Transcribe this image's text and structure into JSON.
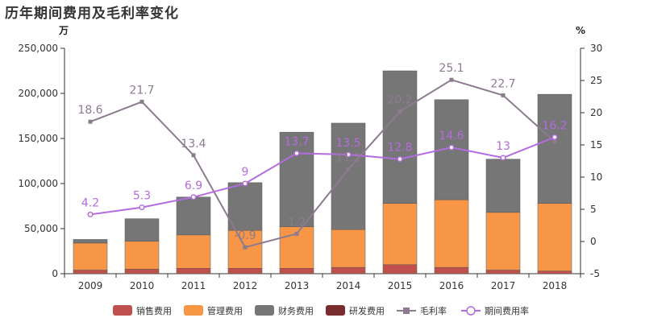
{
  "chart_data": {
    "type": "bar",
    "title": "历年期间费用及毛利率变化",
    "y_left_unit": "万",
    "y_right_unit": "%",
    "categories": [
      "2009",
      "2010",
      "2011",
      "2012",
      "2013",
      "2014",
      "2015",
      "2016",
      "2017",
      "2018"
    ],
    "y_left": {
      "min": 0,
      "max": 250000,
      "ticks": [
        "0",
        "50,000",
        "100,000",
        "150,000",
        "200,000",
        "250,000"
      ]
    },
    "y_right": {
      "min": -5,
      "max": 30,
      "ticks": [
        "-5",
        "0",
        "5",
        "10",
        "15",
        "20",
        "25",
        "30"
      ]
    },
    "grid": false,
    "legend_position": "bottom",
    "bar_series": [
      {
        "name": "销售费用",
        "color": "#c0504d",
        "values": [
          4000,
          5000,
          6000,
          6000,
          6000,
          7000,
          10000,
          7000,
          4000,
          3000
        ]
      },
      {
        "name": "管理费用",
        "color": "#f79646",
        "values": [
          30000,
          31000,
          37000,
          42000,
          46000,
          42000,
          68000,
          75000,
          64000,
          75000
        ]
      },
      {
        "name": "财务费用",
        "color": "#767676",
        "values": [
          4000,
          25000,
          42000,
          53000,
          105000,
          118000,
          147000,
          111000,
          59000,
          121000
        ]
      },
      {
        "name": "研发费用",
        "color": "#7b2c2c",
        "values": [
          0,
          0,
          0,
          0,
          0,
          0,
          0,
          0,
          0,
          0
        ]
      }
    ],
    "line_series": [
      {
        "name": "毛利率",
        "color": "#8c7b8f",
        "marker": "square",
        "values": [
          18.6,
          21.7,
          13.4,
          -0.9,
          1.2,
          11.2,
          20.2,
          25.1,
          22.7,
          15.5
        ],
        "labels": [
          "18.6",
          "21.7",
          "13.4",
          "-0.9",
          "1.2",
          "11.2",
          "20.2",
          "25.1",
          "22.7",
          ""
        ]
      },
      {
        "name": "期间费用率",
        "color": "#b46be0",
        "marker": "circle",
        "values": [
          4.2,
          5.3,
          6.9,
          9,
          13.7,
          13.5,
          12.8,
          14.6,
          13,
          16.2
        ],
        "labels": [
          "4.2",
          "5.3",
          "6.9",
          "9",
          "13.7",
          "13.5",
          "12.8",
          "14.6",
          "13",
          "16.2"
        ]
      }
    ]
  }
}
